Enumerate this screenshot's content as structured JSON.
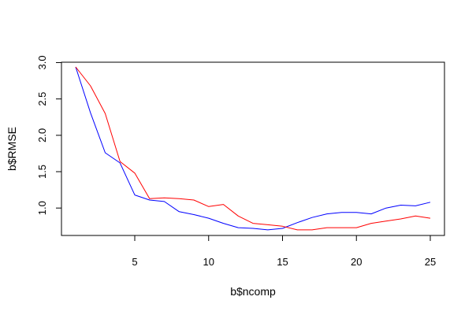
{
  "chart_data": {
    "type": "line",
    "title": "",
    "xlabel": "b$ncomp",
    "ylabel": "b$RMSE",
    "xlim": [
      0.04,
      25.96
    ],
    "ylim": [
      0.623,
      3.005
    ],
    "x_ticks": [
      5,
      10,
      15,
      20,
      25
    ],
    "x_tick_labels": [
      "5",
      "10",
      "15",
      "20",
      "25"
    ],
    "y_ticks": [
      1.0,
      1.5,
      2.0,
      2.5,
      3.0
    ],
    "y_tick_labels": [
      "1.0",
      "1.5",
      "2.0",
      "2.5",
      "3.0"
    ],
    "grid": false,
    "x": [
      1,
      2,
      3,
      4,
      5,
      6,
      7,
      8,
      9,
      10,
      11,
      12,
      13,
      14,
      15,
      16,
      17,
      18,
      19,
      20,
      21,
      22,
      23,
      24,
      25
    ],
    "series": [
      {
        "color": "#0000ff",
        "values": [
          2.94,
          2.31,
          1.76,
          1.62,
          1.18,
          1.11,
          1.09,
          0.95,
          0.91,
          0.86,
          0.79,
          0.73,
          0.72,
          0.7,
          0.72,
          0.8,
          0.87,
          0.92,
          0.94,
          0.94,
          0.92,
          1.0,
          1.04,
          1.03,
          1.08
        ]
      },
      {
        "color": "#ff0000",
        "values": [
          2.94,
          2.68,
          2.3,
          1.64,
          1.48,
          1.13,
          1.14,
          1.13,
          1.11,
          1.02,
          1.05,
          0.89,
          0.79,
          0.77,
          0.75,
          0.7,
          0.7,
          0.73,
          0.73,
          0.73,
          0.79,
          0.82,
          0.85,
          0.89,
          0.86
        ]
      }
    ]
  }
}
